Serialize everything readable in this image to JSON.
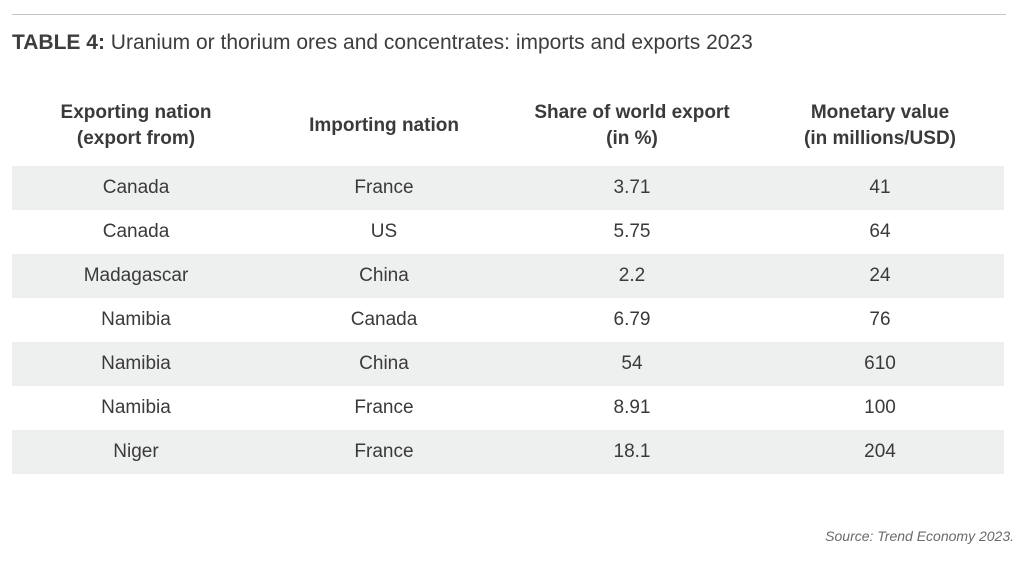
{
  "caption": {
    "label": "TABLE 4:",
    "text": "Uranium or thorium ores and concentrates: imports and exports 2023"
  },
  "table": {
    "headers": [
      [
        "Exporting nation",
        "(export from)"
      ],
      [
        "Importing nation"
      ],
      [
        "Share of world export",
        "(in %)"
      ],
      [
        "Monetary value",
        "(in millions/USD)"
      ]
    ],
    "rows": [
      [
        "Canada",
        "France",
        "3.71",
        "41"
      ],
      [
        "Canada",
        "US",
        "5.75",
        "64"
      ],
      [
        "Madagascar",
        "China",
        "2.2",
        "24"
      ],
      [
        "Namibia",
        "Canada",
        "6.79",
        "76"
      ],
      [
        "Namibia",
        "China",
        "54",
        "610"
      ],
      [
        "Namibia",
        "France",
        "8.91",
        "100"
      ],
      [
        "Niger",
        "France",
        "18.1",
        "204"
      ]
    ]
  },
  "source": "Source: Trend Economy 2023.",
  "colors": {
    "stripe": "#eef0ef",
    "text": "#3a3a3a",
    "rule": "#c4c4c4"
  }
}
